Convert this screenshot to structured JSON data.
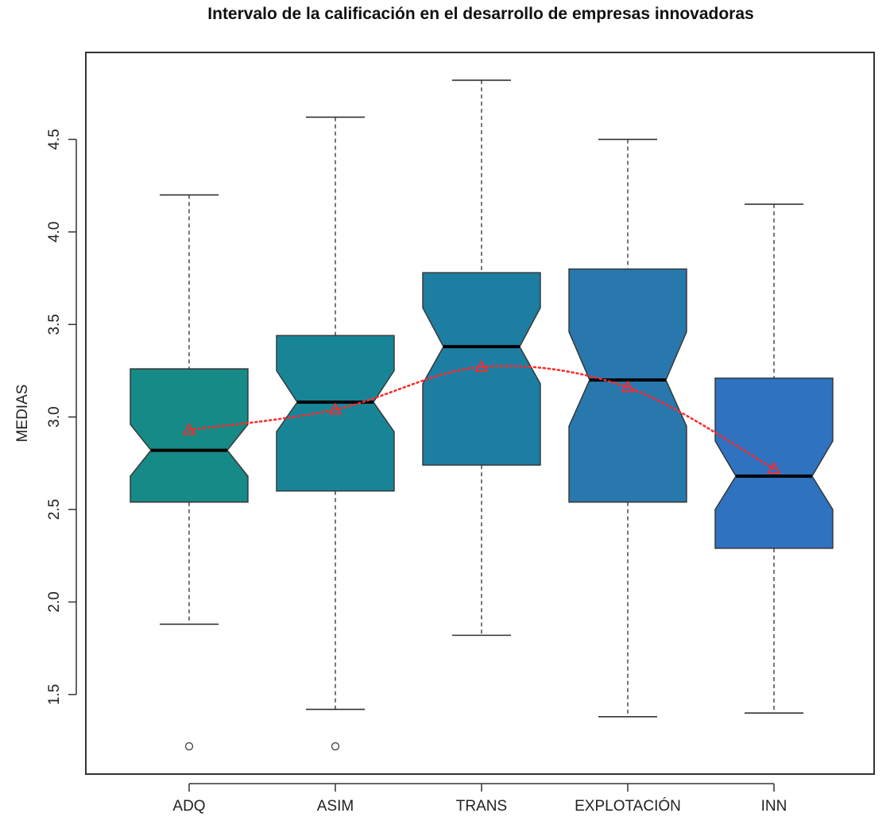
{
  "chart_data": {
    "type": "boxplot",
    "title": "Intervalo de la calificación en el desarrollo de empresas innovadoras",
    "xlabel": "",
    "ylabel": "MEDIAS",
    "ylim": [
      1.07,
      4.97
    ],
    "yticks": [
      1.5,
      2.0,
      2.5,
      3.0,
      3.5,
      4.0,
      4.5
    ],
    "ytick_labels": [
      "1.5",
      "2.0",
      "2.5",
      "3.0",
      "3.5",
      "4.0",
      "4.5"
    ],
    "notched": true,
    "grid": false,
    "categories": [
      "ADQ",
      "ASIM",
      "TRANS",
      "EXPLOTACIÓN",
      "INN"
    ],
    "boxes": [
      {
        "name": "ADQ",
        "whisker_low": 1.88,
        "q1": 2.54,
        "median": 2.82,
        "q3": 3.26,
        "whisker_high": 4.2,
        "notch_low": 2.68,
        "notch_high": 2.96,
        "outliers": [
          1.22
        ],
        "mean": 2.93,
        "color": "#168a86"
      },
      {
        "name": "ASIM",
        "whisker_low": 1.42,
        "q1": 2.6,
        "median": 3.08,
        "q3": 3.44,
        "whisker_high": 4.62,
        "notch_low": 2.92,
        "notch_high": 3.25,
        "outliers": [
          1.22
        ],
        "mean": 3.04,
        "color": "#188597"
      },
      {
        "name": "TRANS",
        "whisker_low": 1.82,
        "q1": 2.74,
        "median": 3.38,
        "q3": 3.78,
        "whisker_high": 4.82,
        "notch_low": 3.18,
        "notch_high": 3.59,
        "outliers": [],
        "mean": 3.27,
        "color": "#1e7ea1"
      },
      {
        "name": "EXPLOTACIÓN",
        "whisker_low": 1.38,
        "q1": 2.54,
        "median": 3.2,
        "q3": 3.8,
        "whisker_high": 4.5,
        "notch_low": 2.95,
        "notch_high": 3.46,
        "outliers": [],
        "mean": 3.16,
        "color": "#2878ae"
      },
      {
        "name": "INN",
        "whisker_low": 1.4,
        "q1": 2.29,
        "median": 2.68,
        "q3": 3.21,
        "whisker_high": 4.15,
        "notch_low": 2.5,
        "notch_high": 2.87,
        "outliers": [],
        "mean": 2.72,
        "color": "#2e72c0"
      }
    ],
    "mean_line": {
      "style": "dotted",
      "marker": "triangle",
      "color": "#ff2a2a"
    }
  }
}
